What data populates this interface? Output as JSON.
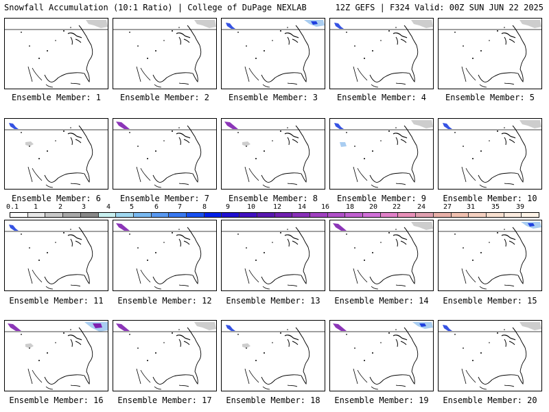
{
  "header": {
    "title": "Snowfall Accumulation (10:1 Ratio) | College of DuPage NEXLAB",
    "run": "12Z GEFS | F324 Valid: 00Z SUN JUN 22 2025"
  },
  "panels": [
    {
      "label": "Ensemble Member: 1",
      "snow": [
        "ne-gray"
      ]
    },
    {
      "label": "Ensemble Member: 2",
      "snow": [
        "ne-gray"
      ]
    },
    {
      "label": "Ensemble Member: 3",
      "snow": [
        "nw-blue",
        "ne-blue"
      ]
    },
    {
      "label": "Ensemble Member: 4",
      "snow": [
        "nw-blue",
        "ne-gray"
      ]
    },
    {
      "label": "Ensemble Member: 5",
      "snow": [
        "ne-gray"
      ]
    },
    {
      "label": "Ensemble Member: 6",
      "snow": [
        "nw-blue",
        "mid-gray"
      ]
    },
    {
      "label": "Ensemble Member: 7",
      "snow": [
        "nw-purple"
      ]
    },
    {
      "label": "Ensemble Member: 8",
      "snow": [
        "nw-purple",
        "mid-gray"
      ]
    },
    {
      "label": "Ensemble Member: 9",
      "snow": [
        "nw-blue",
        "mid-blue",
        "ne-gray"
      ]
    },
    {
      "label": "Ensemble Member: 10",
      "snow": [
        "nw-blue",
        "ne-gray"
      ]
    },
    {
      "label": "Ensemble Member: 11",
      "snow": [
        "nw-blue"
      ]
    },
    {
      "label": "Ensemble Member: 12",
      "snow": [
        "nw-purple"
      ]
    },
    {
      "label": "Ensemble Member: 13",
      "snow": []
    },
    {
      "label": "Ensemble Member: 14",
      "snow": [
        "nw-purple",
        "ne-gray"
      ]
    },
    {
      "label": "Ensemble Member: 15",
      "snow": [
        "ne-blue"
      ]
    },
    {
      "label": "Ensemble Member: 16",
      "snow": [
        "nw-purple",
        "ne-purple",
        "mid-gray"
      ]
    },
    {
      "label": "Ensemble Member: 17",
      "snow": [
        "nw-purple",
        "ne-gray"
      ]
    },
    {
      "label": "Ensemble Member: 18",
      "snow": [
        "nw-blue",
        "mid-gray"
      ]
    },
    {
      "label": "Ensemble Member: 19",
      "snow": [
        "nw-purple",
        "ne-blue"
      ]
    },
    {
      "label": "Ensemble Member: 20",
      "snow": [
        "nw-blue",
        "ne-gray"
      ]
    }
  ],
  "colorbar": {
    "labels": [
      "0.1",
      "1",
      "2",
      "3",
      "4",
      "5",
      "6",
      "7",
      "8",
      "9",
      "10",
      "12",
      "14",
      "16",
      "18",
      "20",
      "22",
      "24",
      "27",
      "31",
      "35",
      "39"
    ],
    "colors": [
      "#ffffff",
      "#e8e8e8",
      "#c8c8c8",
      "#a8a8a8",
      "#888888",
      "#c8f0f0",
      "#a0d8f0",
      "#78b8f0",
      "#5898f0",
      "#3878f0",
      "#1850f0",
      "#0020e8",
      "#2010d0",
      "#4010c0",
      "#5818b0",
      "#7020b0",
      "#8830b8",
      "#a040c0",
      "#b050c8",
      "#c060d0",
      "#d070d8",
      "#e080c8",
      "#e890b8",
      "#e0a0b0",
      "#e8b0a8",
      "#f0c0b0",
      "#f4d0c0",
      "#f8e0d0",
      "#fcece0",
      "#fff4e8"
    ],
    "snow_colors": {
      "gray": "#c8c8c8",
      "blue": "#2040e0",
      "purple": "#8020b0",
      "light": "#a0c8f0"
    }
  }
}
